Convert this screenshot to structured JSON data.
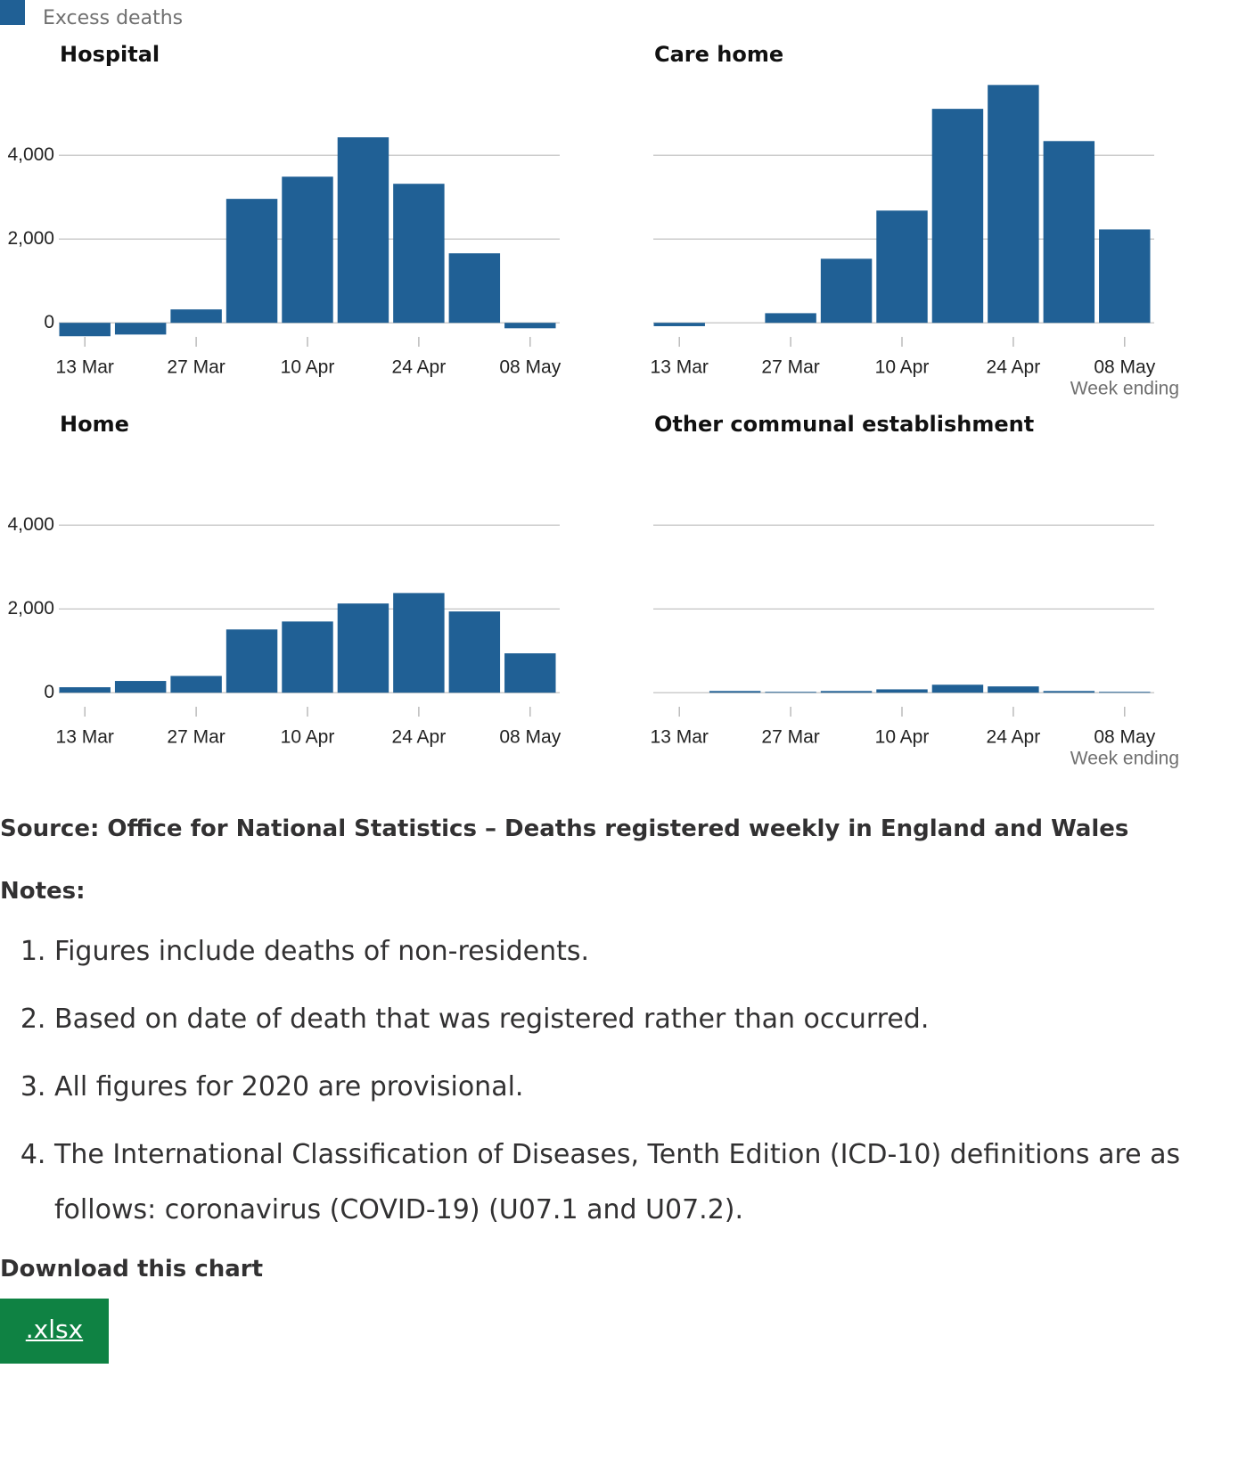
{
  "legend": {
    "label": "Excess deaths",
    "color": "#206095"
  },
  "chart_data": [
    {
      "type": "bar",
      "title": "Hospital",
      "categories": [
        "13 Mar",
        null,
        "27 Mar",
        null,
        "10 Apr",
        null,
        "24 Apr",
        null,
        "08 May"
      ],
      "values": [
        -320,
        -280,
        320,
        2960,
        3490,
        4430,
        3320,
        1660,
        -130
      ],
      "ylim": [
        -400,
        5900
      ],
      "yticks": [
        {
          "value": 0,
          "label": "0"
        },
        {
          "value": 2000,
          "label": "2,000"
        },
        {
          "value": 4000,
          "label": "4,000"
        }
      ],
      "grid": true
    },
    {
      "type": "bar",
      "title": "Care home",
      "xlabel": "Week ending",
      "categories": [
        "13 Mar",
        null,
        "27 Mar",
        null,
        "10 Apr",
        null,
        "24 Apr",
        null,
        "08 May"
      ],
      "values": [
        -80,
        0,
        230,
        1530,
        2680,
        5110,
        5680,
        4340,
        2230
      ],
      "ylim": [
        -400,
        5900
      ],
      "yticks": [
        0,
        2000,
        4000
      ],
      "grid": true
    },
    {
      "type": "bar",
      "title": "Home",
      "categories": [
        "13 Mar",
        null,
        "27 Mar",
        null,
        "10 Apr",
        null,
        "24 Apr",
        null,
        "08 May"
      ],
      "values": [
        130,
        280,
        400,
        1510,
        1700,
        2130,
        2380,
        1940,
        940
      ],
      "ylim": [
        -400,
        5900
      ],
      "yticks": [
        {
          "value": 0,
          "label": "0"
        },
        {
          "value": 2000,
          "label": "2,000"
        },
        {
          "value": 4000,
          "label": "4,000"
        }
      ],
      "grid": true
    },
    {
      "type": "bar",
      "title": "Other communal establishment",
      "xlabel": "Week ending",
      "categories": [
        "13 Mar",
        null,
        "27 Mar",
        null,
        "10 Apr",
        null,
        "24 Apr",
        null,
        "08 May"
      ],
      "values": [
        0,
        40,
        20,
        40,
        80,
        190,
        150,
        40,
        20
      ],
      "ylim": [
        -400,
        5900
      ],
      "yticks": [
        0,
        2000,
        4000
      ],
      "grid": true
    }
  ],
  "source": "Source: Office for National Statistics – Deaths registered weekly in England and Wales",
  "notes_title": "Notes:",
  "notes": [
    "Figures include deaths of non-residents.",
    "Based on date of death that was registered rather than occurred.",
    "All figures for 2020 are provisional.",
    "The International Classification of Diseases, Tenth Edition (ICD-10) definitions are as follows: coronavirus (COVID-19) (U07.1 and U07.2)."
  ],
  "download_title": "Download this chart",
  "download_link": ".xlsx"
}
